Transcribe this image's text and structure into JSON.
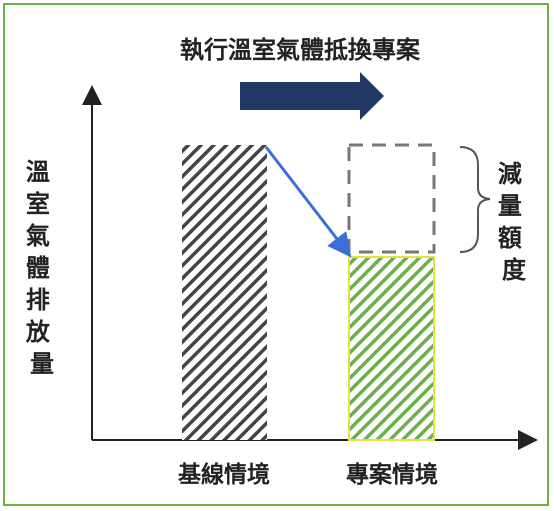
{
  "title": "執行溫室氣體抵換專案",
  "y_axis_label": "溫室氣體排放量",
  "reduction_label": "減量額度",
  "categories": [
    "基線情境",
    "專案情境"
  ],
  "colors": {
    "frame": "#6db33f",
    "title_arrow": "#1f3864",
    "baseline_hatch": "#444444",
    "project_hatch": "#6ab04c",
    "project_outline": "#e8e04a",
    "pointer_arrow": "#3a6fd8",
    "dashed_box": "#777777"
  }
}
